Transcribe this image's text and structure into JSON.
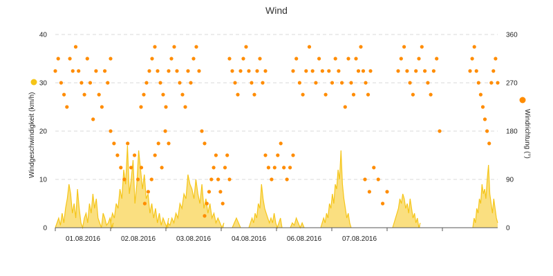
{
  "chart_data": {
    "type": "line",
    "title": "Wind",
    "ylabel_left": "Windgeschwindigkeit (km/h)",
    "ylabel_right": "Windrichtung (°)",
    "ylim_left": [
      0,
      40
    ],
    "ylim_right": [
      0,
      360
    ],
    "left_ticks": [
      "0",
      "10",
      "20",
      "30",
      "40"
    ],
    "right_ticks": [
      "0",
      "90",
      "180",
      "270",
      "360"
    ],
    "x_tick_labels": [
      "01.08.2016",
      "02.08.2016",
      "03.08.2016",
      "04.08.2016",
      "06.08.2016",
      "07.08.2016"
    ],
    "grid": true,
    "legend": "none",
    "series": [
      {
        "kind": "area",
        "axis": "left",
        "color": "#f5c518",
        "segments": [
          {
            "day_start": 0.0,
            "day_end": 1.05,
            "values": [
              0,
              1,
              2,
              0.5,
              3,
              1,
              4,
              6,
              9,
              7,
              3,
              5,
              2,
              8,
              4,
              1,
              0,
              2,
              3,
              1,
              5,
              3,
              7,
              4,
              6,
              2,
              1,
              0,
              3,
              2,
              0.5,
              1,
              2,
              0,
              1
            ]
          },
          {
            "day_start": 1.0,
            "day_end": 2.05,
            "values": [
              1,
              3,
              2,
              5,
              4,
              8,
              6,
              12,
              9,
              17,
              7,
              10,
              14,
              5,
              9,
              16,
              12,
              8,
              11,
              6,
              7,
              3,
              5,
              2,
              4,
              1,
              3,
              0.5,
              2,
              1,
              0,
              2
            ]
          },
          {
            "day_start": 2.0,
            "day_end": 3.05,
            "values": [
              0,
              1,
              0.5,
              2,
              1,
              3,
              2,
              5,
              4,
              7,
              6,
              11,
              9,
              8,
              6,
              10,
              7,
              5,
              9,
              4,
              6,
              3,
              5,
              2,
              3,
              1,
              2,
              1,
              0,
              1
            ]
          },
          {
            "day_start": 3.2,
            "day_end": 3.35,
            "values": [
              0,
              1,
              2,
              1,
              0
            ]
          },
          {
            "day_start": 3.5,
            "day_end": 4.1,
            "values": [
              0,
              1,
              2,
              1,
              3,
              2,
              5,
              4,
              9,
              6,
              4,
              3,
              2,
              1,
              2,
              1,
              3,
              1,
              0,
              1,
              2,
              0
            ]
          },
          {
            "day_start": 4.25,
            "day_end": 4.5,
            "values": [
              0,
              1,
              0.5,
              2,
              1,
              0,
              1,
              0
            ]
          },
          {
            "day_start": 4.8,
            "day_end": 5.35,
            "values": [
              0,
              1,
              2,
              1,
              3,
              2,
              5,
              4,
              7,
              5,
              9,
              8,
              12,
              10,
              16,
              9,
              6,
              4,
              2,
              3,
              1,
              0
            ]
          },
          {
            "day_start": 6.1,
            "day_end": 6.6,
            "values": [
              0,
              1,
              2,
              3,
              4,
              6,
              5,
              7,
              6,
              4,
              5,
              3,
              6,
              4,
              2,
              3,
              1,
              2,
              0,
              1
            ]
          },
          {
            "day_start": 7.55,
            "day_end": 8.0,
            "values": [
              0,
              2,
              1,
              4,
              3,
              6,
              5,
              9,
              7,
              8,
              6,
              10,
              13,
              7,
              5,
              3,
              6,
              4,
              2,
              1
            ]
          }
        ]
      },
      {
        "kind": "scatter",
        "axis": "right",
        "color": "#ff8c00",
        "segments": [
          {
            "day_start": 0.0,
            "day_end": 1.0,
            "values": [
              292,
              315,
              270,
              248,
              225,
              315,
              292,
              337,
              292,
              270,
              248,
              315,
              270,
              202,
              292,
              248,
              225,
              292,
              270,
              315
            ]
          },
          {
            "day_start": 1.0,
            "day_end": 2.05,
            "values": [
              180,
              157,
              135,
              112,
              90,
              157,
              112,
              135,
              90,
              112,
              45,
              67,
              90,
              135,
              157,
              112,
              180,
              157
            ]
          },
          {
            "day_start": 1.55,
            "day_end": 2.7,
            "values": [
              225,
              248,
              270,
              292,
              315,
              337,
              292,
              270,
              248,
              225,
              292,
              315,
              337,
              292,
              270,
              248,
              225,
              292,
              270,
              315,
              337,
              292,
              180,
              157
            ]
          },
          {
            "day_start": 2.7,
            "day_end": 3.15,
            "values": [
              22,
              45,
              67,
              90,
              112,
              135,
              90,
              67,
              45,
              112,
              135,
              90
            ]
          },
          {
            "day_start": 3.15,
            "day_end": 3.8,
            "values": [
              315,
              292,
              270,
              248,
              292,
              315,
              337,
              292,
              270,
              248,
              292,
              315,
              270,
              292
            ]
          },
          {
            "day_start": 3.8,
            "day_end": 4.3,
            "values": [
              135,
              112,
              90,
              112,
              135,
              157,
              112,
              90,
              112,
              135
            ]
          },
          {
            "day_start": 4.3,
            "day_end": 5.3,
            "values": [
              292,
              315,
              270,
              248,
              292,
              337,
              292,
              270,
              315,
              292,
              248,
              292,
              270,
              315,
              292,
              270,
              225,
              315
            ]
          },
          {
            "day_start": 5.35,
            "day_end": 5.7,
            "values": [
              270,
              248,
              315,
              292,
              337,
              292,
              270,
              248,
              292
            ]
          },
          {
            "day_start": 5.6,
            "day_end": 6.0,
            "values": [
              90,
              67,
              112,
              90,
              45,
              67
            ]
          },
          {
            "day_start": 6.2,
            "day_end": 6.95,
            "values": [
              292,
              315,
              337,
              292,
              270,
              248,
              292,
              315,
              337,
              292,
              270,
              248,
              292,
              315,
              180
            ]
          },
          {
            "day_start": 7.5,
            "day_end": 8.0,
            "values": [
              292,
              315,
              337,
              292,
              270,
              248,
              225,
              202,
              180,
              157,
              270,
              292,
              315,
              270
            ]
          }
        ]
      }
    ]
  }
}
